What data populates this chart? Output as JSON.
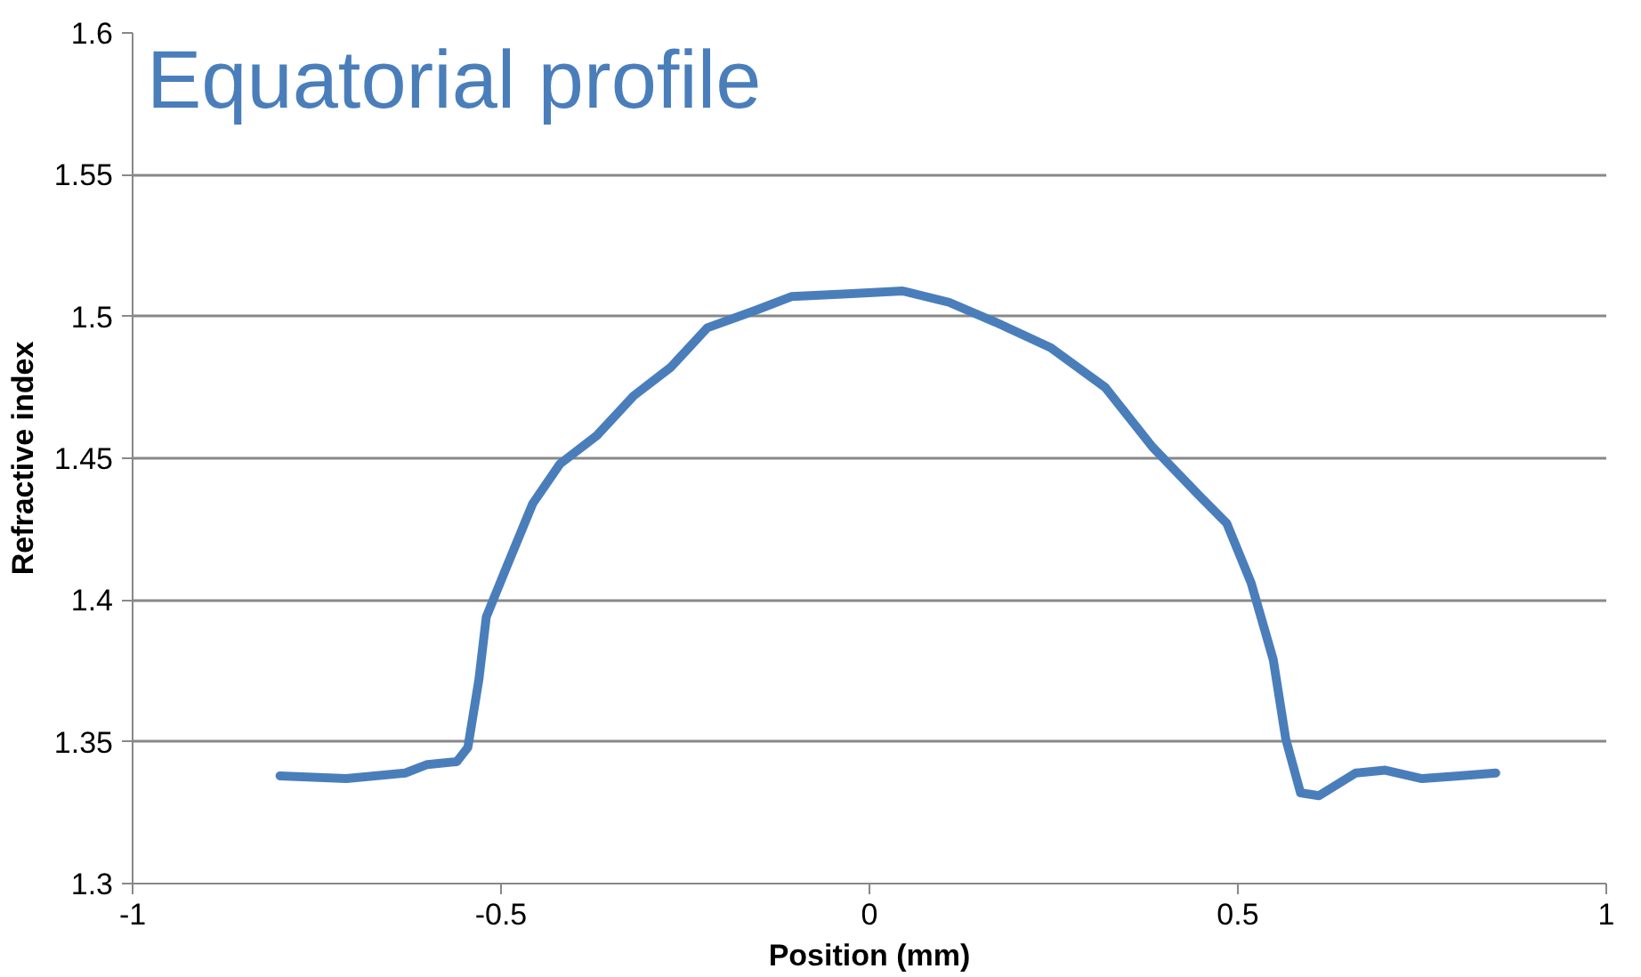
{
  "chart_data": {
    "type": "line",
    "title": "Equatorial profile",
    "xlabel": "Position (mm)",
    "ylabel": "Refractive index",
    "x": [
      -0.8,
      -0.71,
      -0.63,
      -0.6,
      -0.56,
      -0.545,
      -0.53,
      -0.52,
      -0.495,
      -0.457,
      -0.42,
      -0.37,
      -0.32,
      -0.27,
      -0.22,
      -0.156,
      -0.106,
      -0.03,
      0.045,
      0.108,
      0.171,
      0.246,
      0.32,
      0.384,
      0.447,
      0.485,
      0.518,
      0.548,
      0.565,
      0.585,
      0.61,
      0.66,
      0.7,
      0.75,
      0.8,
      0.85
    ],
    "series": [
      {
        "color": "#4a7ebb",
        "values": [
          1.338,
          1.337,
          1.339,
          1.342,
          1.343,
          1.348,
          1.372,
          1.394,
          1.41,
          1.434,
          1.448,
          1.458,
          1.472,
          1.482,
          1.496,
          1.502,
          1.507,
          1.508,
          1.509,
          1.505,
          1.498,
          1.489,
          1.475,
          1.454,
          1.437,
          1.427,
          1.406,
          1.379,
          1.351,
          1.332,
          1.331,
          1.339,
          1.34,
          1.337,
          1.338,
          1.339
        ]
      }
    ],
    "xlim": [
      -1,
      1
    ],
    "ylim": [
      1.3,
      1.6
    ],
    "xticks": [
      -1,
      -0.5,
      0,
      0.5,
      1
    ],
    "yticks": [
      1.3,
      1.35,
      1.4,
      1.45,
      1.5,
      1.55,
      1.6
    ],
    "grid": "y",
    "marker": "none",
    "line_style": "solid"
  }
}
